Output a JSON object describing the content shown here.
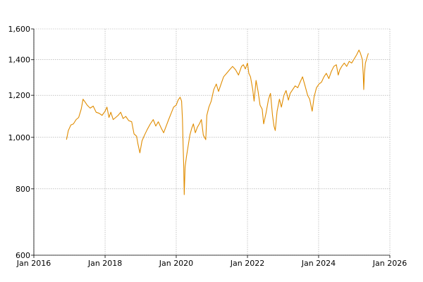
{
  "chart_data": {
    "type": "line",
    "title": "",
    "xlabel": "",
    "ylabel": "",
    "y_scale": "log",
    "grid": true,
    "legend": "none",
    "xlim": [
      "2016-01-01",
      "2026-01-01"
    ],
    "ylim": [
      600,
      1600
    ],
    "x_ticks": [
      "2016-01-01",
      "2018-01-01",
      "2020-01-01",
      "2022-01-01",
      "2024-01-01",
      "2026-01-01"
    ],
    "x_tick_labels": [
      "Jan 2016",
      "Jan 2018",
      "Jan 2020",
      "Jan 2022",
      "Jan 2024",
      "Jan 2026"
    ],
    "y_ticks": [
      600,
      800,
      1000,
      1200,
      1400,
      1600
    ],
    "y_tick_labels": [
      "600",
      "800",
      "1,000",
      "1,200",
      "1,400",
      "1,600"
    ],
    "colors": {
      "series": "#e08c00",
      "grid": "#a0a0a0",
      "axis": "#000000"
    },
    "series": [
      {
        "name": "",
        "x": [
          "2016-12-01",
          "2016-12-20",
          "2017-01-15",
          "2017-02-10",
          "2017-03-10",
          "2017-04-05",
          "2017-05-01",
          "2017-05-20",
          "2017-06-10",
          "2017-07-01",
          "2017-08-01",
          "2017-09-01",
          "2017-10-01",
          "2017-11-01",
          "2017-12-01",
          "2018-01-01",
          "2018-01-20",
          "2018-02-10",
          "2018-03-01",
          "2018-03-25",
          "2018-04-20",
          "2018-05-15",
          "2018-06-10",
          "2018-07-05",
          "2018-08-01",
          "2018-09-01",
          "2018-10-01",
          "2018-10-25",
          "2018-11-20",
          "2018-12-05",
          "2018-12-24",
          "2019-01-15",
          "2019-02-10",
          "2019-03-10",
          "2019-04-10",
          "2019-05-10",
          "2019-06-05",
          "2019-07-01",
          "2019-08-01",
          "2019-08-25",
          "2019-09-20",
          "2019-10-15",
          "2019-11-10",
          "2019-12-05",
          "2020-01-01",
          "2020-01-20",
          "2020-02-10",
          "2020-02-25",
          "2020-03-05",
          "2020-03-12",
          "2020-03-18",
          "2020-03-23",
          "2020-04-01",
          "2020-04-15",
          "2020-05-01",
          "2020-05-20",
          "2020-06-08",
          "2020-06-25",
          "2020-07-15",
          "2020-08-05",
          "2020-08-25",
          "2020-09-15",
          "2020-10-05",
          "2020-10-30",
          "2020-11-10",
          "2020-12-01",
          "2020-12-25",
          "2021-01-20",
          "2021-02-15",
          "2021-03-10",
          "2021-04-05",
          "2021-05-01",
          "2021-06-01",
          "2021-07-01",
          "2021-08-01",
          "2021-09-01",
          "2021-10-01",
          "2021-11-01",
          "2021-11-20",
          "2021-12-10",
          "2022-01-01",
          "2022-01-15",
          "2022-02-01",
          "2022-02-24",
          "2022-03-10",
          "2022-03-30",
          "2022-04-20",
          "2022-05-10",
          "2022-06-01",
          "2022-06-16",
          "2022-07-10",
          "2022-08-05",
          "2022-08-25",
          "2022-09-15",
          "2022-09-30",
          "2022-10-13",
          "2022-11-01",
          "2022-11-25",
          "2022-12-15",
          "2023-01-10",
          "2023-02-01",
          "2023-02-25",
          "2023-03-15",
          "2023-04-10",
          "2023-05-05",
          "2023-06-01",
          "2023-06-25",
          "2023-07-20",
          "2023-08-15",
          "2023-09-10",
          "2023-10-01",
          "2023-10-27",
          "2023-11-15",
          "2023-12-10",
          "2024-01-05",
          "2024-01-30",
          "2024-02-25",
          "2024-03-20",
          "2024-04-15",
          "2024-05-10",
          "2024-06-05",
          "2024-07-01",
          "2024-07-20",
          "2024-08-05",
          "2024-08-25",
          "2024-09-20",
          "2024-10-15",
          "2024-11-10",
          "2024-12-05",
          "2025-01-05",
          "2025-01-25",
          "2025-02-18",
          "2025-03-05",
          "2025-03-25",
          "2025-04-03",
          "2025-04-08",
          "2025-04-15",
          "2025-04-25",
          "2025-05-10",
          "2025-05-25"
        ],
        "y": [
          990,
          1030,
          1055,
          1060,
          1080,
          1090,
          1130,
          1180,
          1165,
          1150,
          1135,
          1145,
          1115,
          1110,
          1100,
          1120,
          1140,
          1090,
          1115,
          1080,
          1090,
          1100,
          1115,
          1085,
          1095,
          1075,
          1070,
          1015,
          1005,
          970,
          935,
          985,
          1010,
          1035,
          1060,
          1080,
          1050,
          1070,
          1040,
          1020,
          1050,
          1080,
          1110,
          1140,
          1150,
          1175,
          1190,
          1170,
          1080,
          960,
          880,
          780,
          880,
          920,
          960,
          1010,
          1040,
          1060,
          1020,
          1045,
          1060,
          1080,
          1010,
          990,
          1100,
          1140,
          1170,
          1230,
          1260,
          1220,
          1260,
          1300,
          1320,
          1340,
          1360,
          1340,
          1310,
          1360,
          1370,
          1345,
          1380,
          1320,
          1300,
          1230,
          1170,
          1280,
          1220,
          1150,
          1130,
          1060,
          1110,
          1180,
          1210,
          1100,
          1050,
          1030,
          1120,
          1180,
          1140,
          1200,
          1225,
          1175,
          1210,
          1230,
          1250,
          1240,
          1270,
          1300,
          1250,
          1200,
          1180,
          1120,
          1190,
          1240,
          1260,
          1270,
          1300,
          1320,
          1290,
          1330,
          1360,
          1370,
          1310,
          1340,
          1360,
          1380,
          1360,
          1390,
          1380,
          1410,
          1430,
          1460,
          1440,
          1400,
          1310,
          1230,
          1320,
          1380,
          1410,
          1440
        ]
      }
    ]
  }
}
